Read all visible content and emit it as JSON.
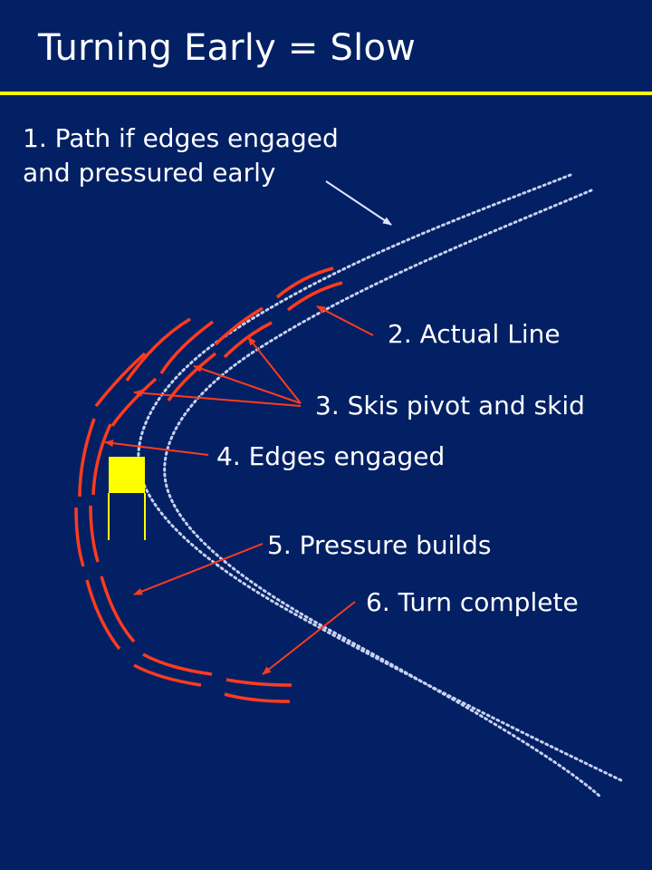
{
  "slide": {
    "title": "Turning Early = Slow"
  },
  "labels": {
    "path_line1": "1. Path if edges engaged",
    "path_line2": "and pressured early",
    "actual_line": "2. Actual Line",
    "pivot_skid": "3. Skis pivot and skid",
    "edges_engaged": "4. Edges engaged",
    "pressure_builds": "5. Pressure builds",
    "turn_complete": "6. Turn complete"
  },
  "colors": {
    "background": "#032064",
    "title_rule": "#ffff00",
    "ski_track": "#ff3b1f",
    "dotted_path": "#c8d2f0",
    "gate_flag": "#ffff00"
  }
}
